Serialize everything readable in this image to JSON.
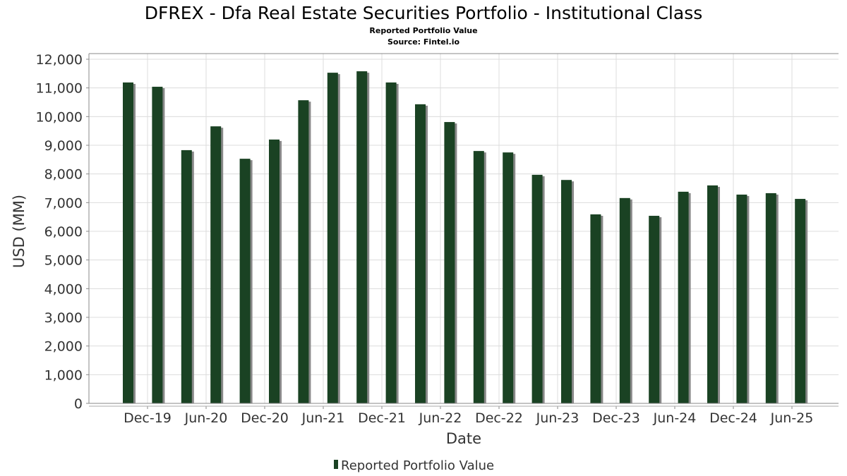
{
  "chart_data": {
    "type": "bar",
    "title": "DFREX - Dfa Real Estate Securities Portfolio - Institutional Class",
    "subtitle": "Reported Portfolio Value",
    "source": "Source: Fintel.io",
    "xlabel": "Date",
    "ylabel": "USD (MM)",
    "ylim": [
      0,
      12000
    ],
    "yticks": [
      0,
      1000,
      2000,
      3000,
      4000,
      5000,
      6000,
      7000,
      8000,
      9000,
      10000,
      11000,
      12000
    ],
    "ytick_labels": [
      "0",
      "1,000",
      "2,000",
      "3,000",
      "4,000",
      "5,000",
      "6,000",
      "7,000",
      "8,000",
      "9,000",
      "10,000",
      "11,000",
      "12,000"
    ],
    "xtick_labels": [
      "Dec-19",
      "Jun-20",
      "Dec-20",
      "Jun-21",
      "Dec-21",
      "Jun-22",
      "Dec-22",
      "Jun-23",
      "Dec-23",
      "Jun-24",
      "Dec-24",
      "Jun-25"
    ],
    "grid": true,
    "legend": {
      "position": "bottom",
      "entries": [
        "Reported Portfolio Value"
      ]
    },
    "series": [
      {
        "name": "Reported Portfolio Value",
        "color": "#1a4223",
        "values": [
          11190,
          11040,
          8830,
          9660,
          8530,
          9200,
          10570,
          11530,
          11580,
          11190,
          10430,
          9810,
          8800,
          8750,
          7970,
          7790,
          6590,
          7160,
          6540,
          7380,
          7600,
          7280,
          7330,
          7130
        ]
      }
    ]
  }
}
